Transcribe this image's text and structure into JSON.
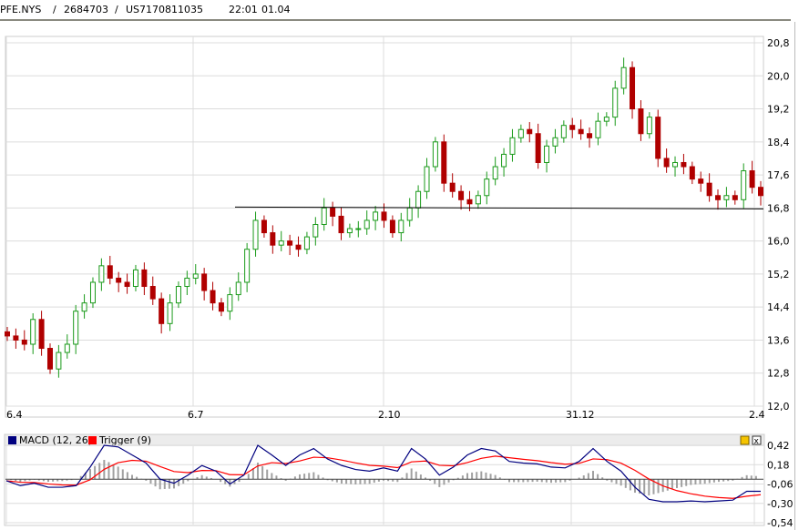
{
  "header": {
    "symbol": "PFE.NYS",
    "id": "2684703",
    "isin": "US7170811035",
    "sep": "/",
    "time": "22:01",
    "date": "01.04"
  },
  "chart_data": [
    {
      "type": "candlestick",
      "title": "PFE.NYS",
      "x_ticks": [
        "6.4",
        "6.7",
        "2.10",
        "31.12",
        "2.4"
      ],
      "y_ticks": [
        "20,8",
        "20,0",
        "19,2",
        "18,4",
        "17,6",
        "16,8",
        "16,0",
        "15,2",
        "14,4",
        "13,6",
        "12,8",
        "12,0"
      ],
      "ylim": [
        12.0,
        20.8
      ],
      "support_line": 16.8,
      "closes": [
        13.7,
        13.6,
        13.5,
        14.1,
        13.4,
        12.9,
        13.3,
        13.5,
        14.3,
        14.5,
        15.0,
        15.4,
        15.1,
        15.0,
        14.9,
        15.3,
        14.9,
        14.6,
        14.0,
        14.5,
        14.9,
        15.1,
        15.2,
        14.8,
        14.5,
        14.3,
        14.7,
        15.0,
        15.8,
        16.5,
        16.2,
        15.9,
        16.0,
        15.9,
        15.8,
        16.1,
        16.4,
        16.8,
        16.6,
        16.2,
        16.3,
        16.3,
        16.5,
        16.7,
        16.5,
        16.2,
        16.5,
        16.8,
        17.2,
        17.8,
        18.4,
        17.4,
        17.2,
        17.0,
        16.9,
        17.1,
        17.5,
        17.8,
        18.1,
        18.5,
        18.7,
        18.6,
        17.9,
        18.3,
        18.5,
        18.8,
        18.7,
        18.6,
        18.5,
        18.9,
        19.0,
        19.7,
        20.2,
        19.2,
        18.6,
        19.0,
        18.0,
        17.8,
        17.9,
        17.8,
        17.5,
        17.4,
        17.1,
        17.0,
        17.1,
        17.0,
        17.7,
        17.3,
        17.1
      ]
    },
    {
      "type": "line",
      "title": "MACD",
      "legend": [
        {
          "name": "MACD (12, 26)",
          "color": "#00007f"
        },
        {
          "name": "Trigger (9)",
          "color": "#ff0000"
        }
      ],
      "y_ticks": [
        "0,42",
        "0,18",
        "-0,06",
        "-0,30",
        "-0,54"
      ],
      "ylim": [
        -0.54,
        0.42
      ],
      "macd": [
        -0.02,
        -0.08,
        -0.05,
        -0.1,
        -0.1,
        -0.08,
        0.15,
        0.42,
        0.4,
        0.3,
        0.2,
        0.0,
        -0.05,
        0.05,
        0.17,
        0.1,
        -0.06,
        0.05,
        0.42,
        0.3,
        0.17,
        0.3,
        0.38,
        0.25,
        0.17,
        0.12,
        0.1,
        0.14,
        0.1,
        0.38,
        0.25,
        0.05,
        0.15,
        0.3,
        0.38,
        0.35,
        0.22,
        0.2,
        0.19,
        0.15,
        0.14,
        0.22,
        0.38,
        0.22,
        0.1,
        -0.1,
        -0.25,
        -0.28,
        -0.28,
        -0.27,
        -0.28,
        -0.27,
        -0.26,
        -0.15,
        -0.15
      ]
    }
  ],
  "colors": {
    "up": "#1a9a1a",
    "down": "#b00000",
    "grid": "#dcdcdc"
  }
}
